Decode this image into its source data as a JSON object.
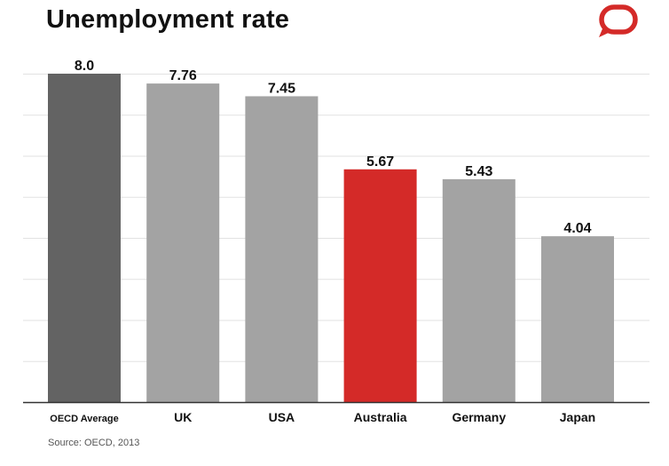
{
  "header": {
    "title": "Unemployment rate"
  },
  "logo": {
    "icon": "speech-bubble-logo-icon",
    "color": "#d42a28"
  },
  "source": "Source: OECD, 2013",
  "colors": {
    "highlight": "#d42a28",
    "average": "#636363",
    "default": "#a3a3a3",
    "grid": "#e2e2e2",
    "baseline": "#333333"
  },
  "chart_data": {
    "type": "bar",
    "title": "Unemployment rate",
    "xlabel": "",
    "ylabel": "",
    "ylim": [
      0,
      8
    ],
    "grid": true,
    "categories": [
      "OECD Average",
      "UK",
      "USA",
      "Australia",
      "Germany",
      "Japan"
    ],
    "values": [
      8.0,
      7.76,
      7.45,
      5.67,
      5.43,
      4.04
    ],
    "value_labels": [
      "8.0",
      "7.76",
      "7.45",
      "5.67",
      "5.43",
      "4.04"
    ],
    "bar_colors": [
      "#636363",
      "#a3a3a3",
      "#a3a3a3",
      "#d42a28",
      "#a3a3a3",
      "#a3a3a3"
    ]
  }
}
